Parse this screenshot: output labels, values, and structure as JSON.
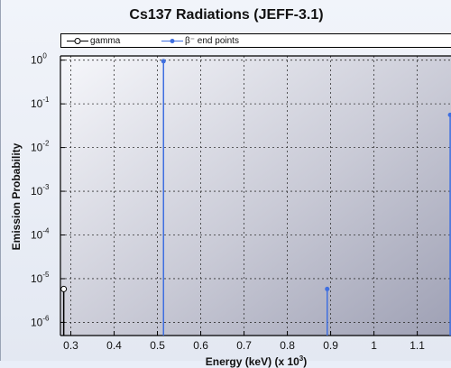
{
  "chart_data": {
    "type": "scatter",
    "subtype": "stem",
    "title": "Cs137 Radiations (JEFF-3.1)",
    "xlabel": "Energy (keV) (x 10",
    "xlabel_sup": "3",
    "xlabel_tail": ")",
    "ylabel": "Emission Probability",
    "xlim": [
      0.276,
      1.18
    ],
    "ylim": [
      5e-07,
      1.25
    ],
    "yscale": "log",
    "xticks": [
      "0.3",
      "0.4",
      "0.5",
      "0.6",
      "0.7",
      "0.8",
      "0.9",
      "1",
      "1.1"
    ],
    "xtick_values": [
      0.3,
      0.4,
      0.5,
      0.6,
      0.7,
      0.8,
      0.9,
      1.0,
      1.1
    ],
    "ytick_exponents": [
      0,
      -1,
      -2,
      -3,
      -4,
      -5,
      -6
    ],
    "ytick_base": "10",
    "grid": true,
    "legend_position": "top",
    "series": [
      {
        "name": "gamma",
        "color": "#000000",
        "marker": "open-circle",
        "x": [
          0.2836
        ],
        "y": [
          5.8e-06
        ]
      },
      {
        "name": "β⁻ end points",
        "color": "#3f6fe0",
        "marker": "filled-circle",
        "x": [
          0.514,
          0.892,
          1.176
        ],
        "y": [
          0.944,
          5.8e-06,
          0.056
        ]
      }
    ]
  }
}
